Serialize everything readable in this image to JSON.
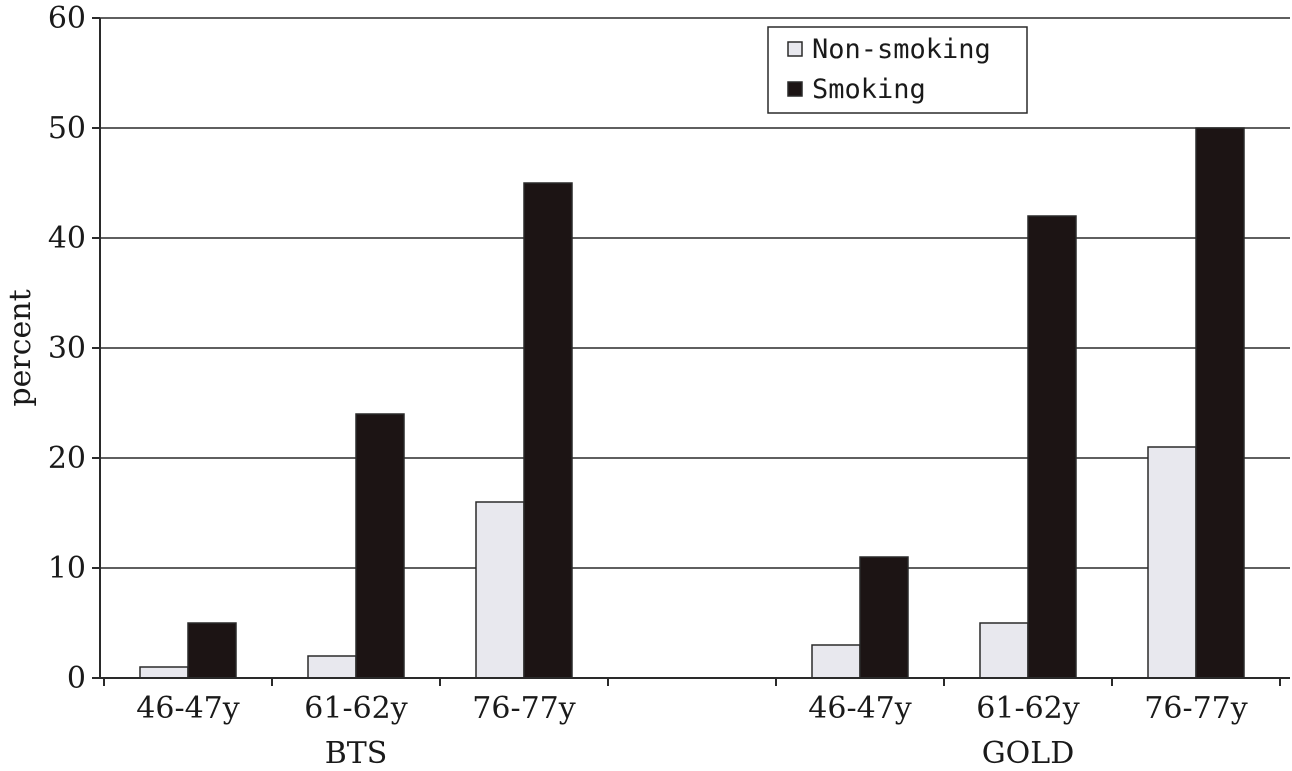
{
  "chart_data": {
    "type": "bar",
    "title": "",
    "ylabel": "percent",
    "xlabel": "",
    "ylim": [
      0,
      60
    ],
    "yticks": [
      0,
      10,
      20,
      30,
      40,
      50,
      60
    ],
    "groups": [
      {
        "name": "BTS",
        "categories": [
          "46-47y",
          "61-62y",
          "76-77y"
        ]
      },
      {
        "name": "GOLD",
        "categories": [
          "46-47y",
          "61-62y",
          "76-77y"
        ]
      }
    ],
    "series": [
      {
        "name": "Non-smoking",
        "color": "#e8e8ee",
        "values": [
          1,
          2,
          16,
          3,
          5,
          21
        ]
      },
      {
        "name": "Smoking",
        "color": "#1c1414",
        "values": [
          5,
          24,
          45,
          11,
          42,
          50
        ]
      }
    ],
    "grid": true,
    "legend_position": "top-right"
  }
}
